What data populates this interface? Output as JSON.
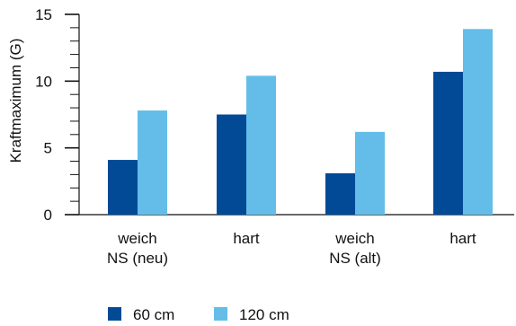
{
  "chart_data": {
    "type": "bar",
    "ylabel": "Kraftmaximum (G)",
    "ylim": [
      0,
      15
    ],
    "yticks": [
      "0",
      "5",
      "10",
      "15"
    ],
    "categories": [
      [
        "weich",
        "NS (neu)"
      ],
      [
        "hart"
      ],
      [
        "weich",
        "NS (alt)"
      ],
      [
        "hart"
      ]
    ],
    "series": [
      {
        "name": "60 cm",
        "color": "#034a96",
        "values": [
          4.1,
          7.5,
          3.1,
          10.7
        ]
      },
      {
        "name": "120 cm",
        "color": "#63bde8",
        "values": [
          7.8,
          10.4,
          6.2,
          13.9
        ]
      }
    ],
    "grid": false,
    "legend_position": "bottom"
  }
}
